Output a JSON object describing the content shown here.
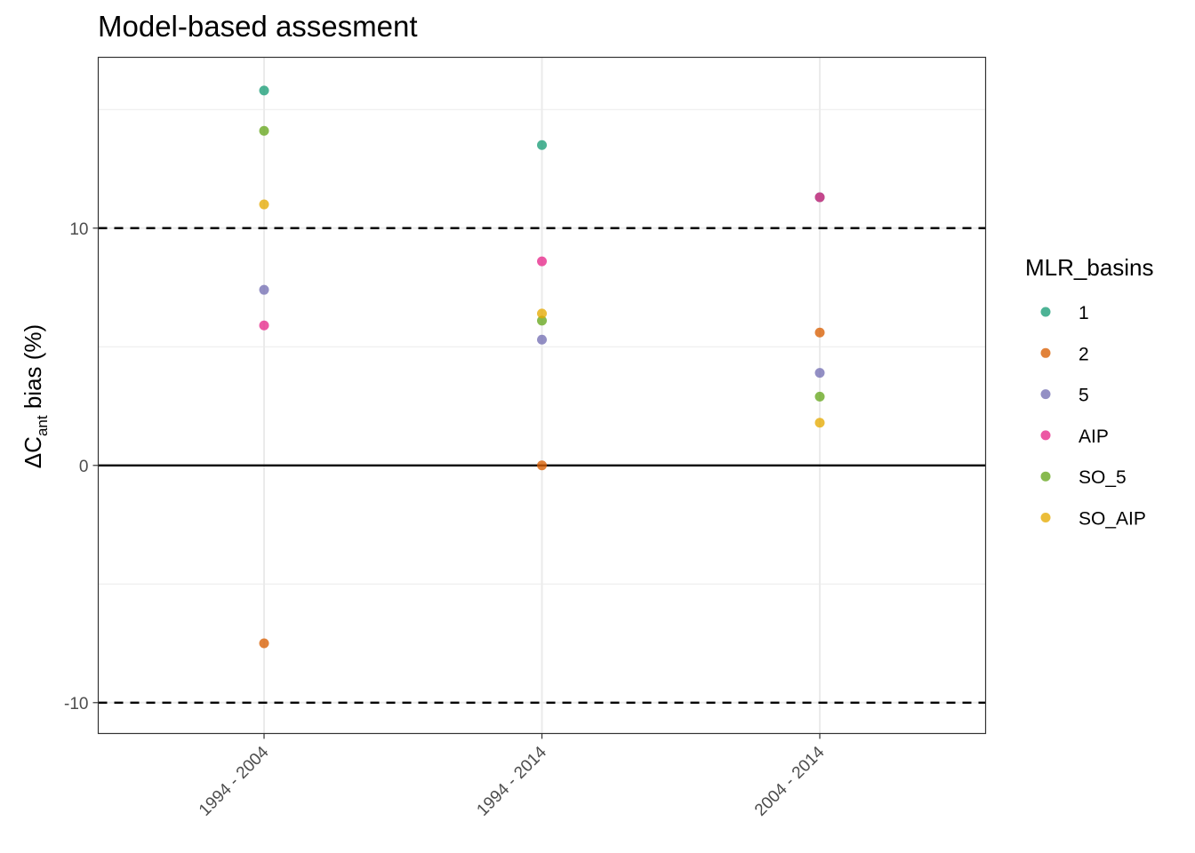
{
  "chart_data": {
    "type": "scatter",
    "title": "Model-based assesment",
    "ylabel": {
      "prefix": "ΔC",
      "subscript": "ant",
      "suffix": " bias (%)"
    },
    "xlabel": "",
    "categories": [
      "1994 - 2004",
      "1994 - 2014",
      "2004 - 2014"
    ],
    "ylim": [
      -11.3,
      17.2
    ],
    "yticks": [
      -10,
      0,
      10
    ],
    "ytick_labels": [
      "-10",
      "0",
      "10"
    ],
    "minor_grid_y": [
      -5,
      5,
      15
    ],
    "hlines": [
      {
        "y": 10,
        "style": "dashed"
      },
      {
        "y": -10,
        "style": "dashed"
      },
      {
        "y": 0,
        "style": "solid"
      }
    ],
    "grid": true,
    "legend": {
      "title": "MLR_basins",
      "position": "right"
    },
    "series": [
      {
        "name": "1",
        "color": "#1B9E77",
        "values": [
          15.8,
          13.5,
          11.3
        ]
      },
      {
        "name": "2",
        "color": "#D95F02",
        "values": [
          -7.5,
          0.0,
          5.6
        ]
      },
      {
        "name": "5",
        "color": "#7570B3",
        "values": [
          7.4,
          5.3,
          3.9
        ]
      },
      {
        "name": "AIP",
        "color": "#E7298A",
        "values": [
          5.9,
          8.6,
          11.3
        ]
      },
      {
        "name": "SO_5",
        "color": "#66A61E",
        "values": [
          14.1,
          6.1,
          2.9
        ]
      },
      {
        "name": "SO_AIP",
        "color": "#E6AB02",
        "values": [
          11.0,
          6.4,
          1.8
        ]
      }
    ]
  }
}
